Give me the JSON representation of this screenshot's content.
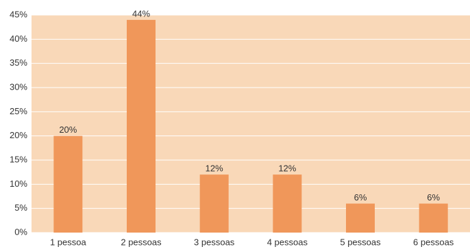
{
  "chart_data": {
    "type": "bar",
    "categories": [
      "1 pessoa",
      "2 pessoas",
      "3 pessoas",
      "4 pessoas",
      "5 pessoas",
      "6 pessoas"
    ],
    "values": [
      20,
      44,
      12,
      12,
      6,
      6
    ],
    "value_labels": [
      "20%",
      "44%",
      "12%",
      "12%",
      "6%",
      "6%"
    ],
    "color": "#f0975a",
    "ylim": [
      0,
      45
    ],
    "yticks": [
      {
        "value": 0,
        "label": "0%"
      },
      {
        "value": 5,
        "label": "5%"
      },
      {
        "value": 10,
        "label": "10%"
      },
      {
        "value": 15,
        "label": "15%"
      },
      {
        "value": 20,
        "label": "20%"
      },
      {
        "value": 25,
        "label": "25%"
      },
      {
        "value": 30,
        "label": "30%"
      },
      {
        "value": 35,
        "label": "35%"
      },
      {
        "value": 40,
        "label": "40%"
      },
      {
        "value": 45,
        "label": "45%"
      }
    ],
    "grid": true
  }
}
